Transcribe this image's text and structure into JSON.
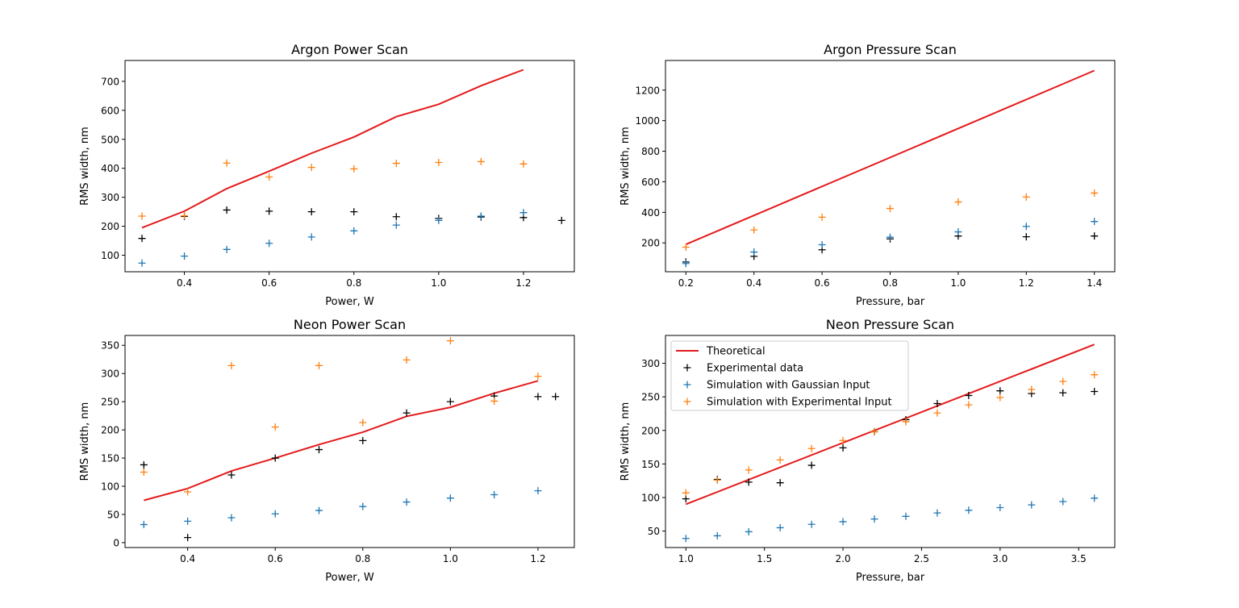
{
  "chart_data": [
    {
      "type": "scatter",
      "title": "Argon Power Scan",
      "xlabel": "Power, W",
      "ylabel": "RMS width, nm",
      "xlim": [
        0.26,
        1.32
      ],
      "ylim": [
        43,
        772
      ],
      "xticks": [
        0.4,
        0.6,
        0.8,
        1.0,
        1.2
      ],
      "xtick_labels": [
        "0.4",
        "0.6",
        "0.8",
        "1.0",
        "1.2"
      ],
      "yticks": [
        100,
        200,
        300,
        400,
        500,
        600,
        700
      ],
      "ytick_labels": [
        "100",
        "200",
        "300",
        "400",
        "500",
        "600",
        "700"
      ],
      "series": [
        {
          "key": "theoretical",
          "x": [
            0.3,
            0.4,
            0.5,
            0.6,
            0.7,
            0.8,
            0.9,
            1.0,
            1.1,
            1.2
          ],
          "values": [
            195,
            252,
            330,
            390,
            452,
            508,
            578,
            621,
            685,
            740
          ]
        },
        {
          "key": "experimental",
          "x": [
            0.3,
            0.4,
            0.5,
            0.6,
            0.7,
            0.8,
            0.9,
            1.0,
            1.1,
            1.2,
            1.29
          ],
          "values": [
            158,
            234,
            256,
            252,
            250,
            250,
            233,
            227,
            232,
            230,
            220
          ]
        },
        {
          "key": "gaussian",
          "x": [
            0.3,
            0.4,
            0.5,
            0.6,
            0.7,
            0.8,
            0.9,
            1.0,
            1.1,
            1.2
          ],
          "values": [
            73,
            97,
            120,
            141,
            163,
            184,
            204,
            220,
            235,
            247
          ]
        },
        {
          "key": "experimental_input",
          "x": [
            0.3,
            0.4,
            0.5,
            0.6,
            0.7,
            0.8,
            0.9,
            1.0,
            1.1,
            1.2
          ],
          "values": [
            235,
            236,
            418,
            370,
            403,
            398,
            417,
            420,
            423,
            415
          ]
        }
      ]
    },
    {
      "type": "scatter",
      "title": "Argon Pressure Scan",
      "xlabel": "Pressure, bar",
      "ylabel": "RMS width, nm",
      "xlim": [
        0.14,
        1.46
      ],
      "ylim": [
        11,
        1394
      ],
      "xticks": [
        0.2,
        0.4,
        0.6,
        0.8,
        1.0,
        1.2,
        1.4
      ],
      "xtick_labels": [
        "0.2",
        "0.4",
        "0.6",
        "0.8",
        "1.0",
        "1.2",
        "1.4"
      ],
      "yticks": [
        200,
        400,
        600,
        800,
        1000,
        1200
      ],
      "ytick_labels": [
        "200",
        "400",
        "600",
        "800",
        "1000",
        "1200"
      ],
      "series": [
        {
          "key": "theoretical",
          "x": [
            0.2,
            1.4
          ],
          "values": [
            190,
            1328
          ]
        },
        {
          "key": "experimental",
          "x": [
            0.2,
            0.4,
            0.6,
            0.8,
            1.0,
            1.2,
            1.4
          ],
          "values": [
            75,
            112,
            155,
            226,
            245,
            240,
            245
          ]
        },
        {
          "key": "gaussian",
          "x": [
            0.2,
            0.4,
            0.6,
            0.8,
            1.0,
            1.2,
            1.4
          ],
          "values": [
            65,
            140,
            188,
            237,
            272,
            308,
            340
          ]
        },
        {
          "key": "experimental_input",
          "x": [
            0.2,
            0.4,
            0.6,
            0.8,
            1.0,
            1.2,
            1.4
          ],
          "values": [
            172,
            285,
            368,
            425,
            468,
            500,
            526
          ]
        }
      ]
    },
    {
      "type": "scatter",
      "title": "Neon Power Scan",
      "xlabel": "Power, W",
      "ylabel": "RMS width, nm",
      "xlim": [
        0.257,
        1.283
      ],
      "ylim": [
        -8.7,
        367.5
      ],
      "xticks": [
        0.4,
        0.6,
        0.8,
        1.0,
        1.2
      ],
      "xtick_labels": [
        "0.4",
        "0.6",
        "0.8",
        "1.0",
        "1.2"
      ],
      "yticks": [
        0,
        50,
        100,
        150,
        200,
        250,
        300,
        350
      ],
      "ytick_labels": [
        "0",
        "50",
        "100",
        "150",
        "200",
        "250",
        "300",
        "350"
      ],
      "series": [
        {
          "key": "theoretical",
          "x": [
            0.3,
            0.4,
            0.5,
            0.6,
            0.7,
            0.8,
            0.9,
            1.0,
            1.1,
            1.2
          ],
          "values": [
            75,
            96,
            127,
            150,
            174,
            196,
            224,
            240,
            265,
            287
          ]
        },
        {
          "key": "experimental",
          "x": [
            0.3,
            0.4,
            0.5,
            0.6,
            0.7,
            0.8,
            0.9,
            1.0,
            1.1,
            1.2,
            1.24
          ],
          "values": [
            138,
            9,
            120,
            150,
            165,
            181,
            230,
            250,
            260,
            259,
            259
          ]
        },
        {
          "key": "gaussian",
          "x": [
            0.3,
            0.4,
            0.5,
            0.6,
            0.7,
            0.8,
            0.9,
            1.0,
            1.1,
            1.2
          ],
          "values": [
            32,
            38,
            44,
            51,
            57,
            64,
            72,
            79,
            85,
            92
          ]
        },
        {
          "key": "experimental_input",
          "x": [
            0.3,
            0.4,
            0.5,
            0.6,
            0.7,
            0.8,
            0.9,
            1.0,
            1.1,
            1.2
          ],
          "values": [
            125,
            90,
            314,
            205,
            314,
            213,
            324,
            358,
            251,
            295
          ]
        }
      ]
    },
    {
      "type": "scatter",
      "title": "Neon Pressure Scan",
      "xlabel": "Pressure, bar",
      "ylabel": "RMS width, nm",
      "xlim": [
        0.87,
        3.73
      ],
      "ylim": [
        25.5,
        341.5
      ],
      "xticks": [
        1.0,
        1.5,
        2.0,
        2.5,
        3.0,
        3.5
      ],
      "xtick_labels": [
        "1.0",
        "1.5",
        "2.0",
        "2.5",
        "3.0",
        "3.5"
      ],
      "yticks": [
        50,
        100,
        150,
        200,
        250,
        300
      ],
      "ytick_labels": [
        "50",
        "100",
        "150",
        "200",
        "250",
        "300"
      ],
      "legend_placement": "upper-left",
      "series": [
        {
          "key": "theoretical",
          "name": "Theoretical",
          "x": [
            1.0,
            3.6
          ],
          "values": [
            90,
            328
          ]
        },
        {
          "key": "experimental",
          "name": "Experimental data",
          "x": [
            1.0,
            1.2,
            1.4,
            1.6,
            1.8,
            2.0,
            2.2,
            2.4,
            2.6,
            2.8,
            3.0,
            3.2,
            3.4,
            3.6
          ],
          "values": [
            98,
            127,
            123,
            122,
            148,
            174,
            198,
            216,
            240,
            252,
            259,
            255,
            256,
            258
          ]
        },
        {
          "key": "gaussian",
          "name": "Simulation with Gaussian Input",
          "x": [
            1.0,
            1.2,
            1.4,
            1.6,
            1.8,
            2.0,
            2.2,
            2.4,
            2.6,
            2.8,
            3.0,
            3.2,
            3.4,
            3.6
          ],
          "values": [
            39,
            43,
            49,
            55,
            60,
            64,
            68,
            72,
            77,
            81,
            85,
            89,
            94,
            99
          ]
        },
        {
          "key": "experimental_input",
          "name": "Simulation with Experimental Input",
          "x": [
            1.0,
            1.2,
            1.4,
            1.6,
            1.8,
            2.0,
            2.2,
            2.4,
            2.6,
            2.8,
            3.0,
            3.2,
            3.4,
            3.6
          ],
          "values": [
            107,
            126,
            141,
            156,
            173,
            185,
            198,
            213,
            226,
            238,
            249,
            261,
            273,
            283
          ]
        }
      ]
    }
  ],
  "colors": {
    "theoretical": "#e41a1c",
    "experimental": "#000000",
    "gaussian": "#1f77b4",
    "experimental_input": "#ff7f0e"
  }
}
